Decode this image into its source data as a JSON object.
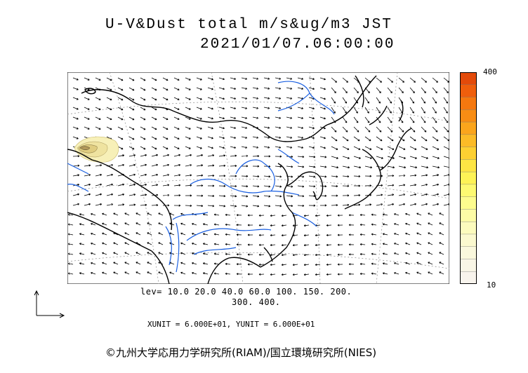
{
  "title": {
    "line1": "U-V&Dust total m/s&ug/m3 JST",
    "line2": "2021/01/07.06:00:00"
  },
  "colorbar": {
    "max_label": "400",
    "min_label": "10",
    "colors": [
      "#e34a0a",
      "#ef5e0c",
      "#f5780f",
      "#f88d14",
      "#fba51c",
      "#fcbb27",
      "#fdd032",
      "#fde544",
      "#fdf356",
      "#fdfa72",
      "#fdfc8e",
      "#fdfca6",
      "#fcfbbd",
      "#fbf9cf",
      "#faf8dd",
      "#f9f6e6",
      "#f8f4ed"
    ]
  },
  "levels": {
    "line1": "lev= 10.0 20.0 40.0 60.0 100. 150. 200.",
    "line2": "300. 400."
  },
  "units": "XUNIT = 6.000E+01, YUNIT = 6.000E+01",
  "credit": "©九州大学応用力学研究所(RIAM)/国立環境研究所(NIES)",
  "colors": {
    "coast": "#000000",
    "rivers": "#1a5fe0",
    "dust_fill": "#f7f0b8",
    "dust_core": "#e9d78a"
  }
}
